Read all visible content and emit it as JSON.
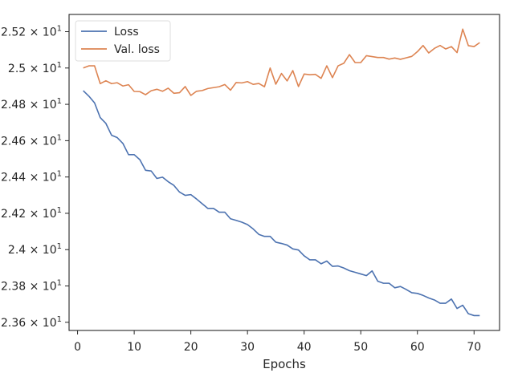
{
  "chart_data": {
    "type": "line",
    "title": "",
    "xlabel": "Epochs",
    "ylabel": "",
    "xlim": [
      -1.5,
      74.5
    ],
    "ylim": [
      23.555,
      25.295
    ],
    "grid": false,
    "legend_position": "top-left",
    "x_ticks": [
      0,
      10,
      20,
      30,
      40,
      50,
      60,
      70
    ],
    "x_tick_labels": [
      "0",
      "10",
      "20",
      "30",
      "40",
      "50",
      "60",
      "70"
    ],
    "y_ticks": [
      23.6,
      23.8,
      24.0,
      24.2,
      24.4,
      24.6,
      24.8,
      25.0,
      25.2
    ],
    "y_tick_labels": [
      {
        "mantissa": "2.36",
        "exp": "1"
      },
      {
        "mantissa": "2.38",
        "exp": "1"
      },
      {
        "mantissa": "2.4",
        "exp": "1"
      },
      {
        "mantissa": "2.42",
        "exp": "1"
      },
      {
        "mantissa": "2.44",
        "exp": "1"
      },
      {
        "mantissa": "2.46",
        "exp": "1"
      },
      {
        "mantissa": "2.48",
        "exp": "1"
      },
      {
        "mantissa": "2.5",
        "exp": "1"
      },
      {
        "mantissa": "2.52",
        "exp": "1"
      }
    ],
    "y_tick_times": "×",
    "y_tick_base": "10",
    "series": [
      {
        "name": "Loss",
        "color": "#4c72b0",
        "x": [
          1,
          2,
          3,
          4,
          5,
          6,
          7,
          8,
          9,
          10,
          11,
          12,
          13,
          14,
          15,
          16,
          17,
          18,
          19,
          20,
          21,
          22,
          23,
          24,
          25,
          26,
          27,
          28,
          29,
          30,
          31,
          32,
          33,
          34,
          35,
          36,
          37,
          38,
          39,
          40,
          41,
          42,
          43,
          44,
          45,
          46,
          47,
          48,
          49,
          50,
          51,
          52,
          53,
          54,
          55,
          56,
          57,
          58,
          59,
          60,
          61,
          62,
          63,
          64,
          65,
          66,
          67,
          68,
          69,
          70,
          71
        ],
        "values": [
          24.875,
          24.845,
          24.808,
          24.727,
          24.695,
          24.63,
          24.617,
          24.585,
          24.523,
          24.523,
          24.495,
          24.437,
          24.433,
          24.392,
          24.399,
          24.374,
          24.354,
          24.317,
          24.299,
          24.303,
          24.279,
          24.253,
          24.227,
          24.227,
          24.206,
          24.206,
          24.17,
          24.161,
          24.151,
          24.138,
          24.114,
          24.084,
          24.073,
          24.073,
          24.041,
          24.034,
          24.025,
          24.004,
          23.998,
          23.966,
          23.944,
          23.944,
          23.922,
          23.937,
          23.908,
          23.91,
          23.899,
          23.884,
          23.875,
          23.866,
          23.857,
          23.883,
          23.826,
          23.815,
          23.815,
          23.79,
          23.797,
          23.781,
          23.763,
          23.759,
          23.748,
          23.734,
          23.723,
          23.705,
          23.705,
          23.728,
          23.676,
          23.694,
          23.647,
          23.637,
          23.637
        ]
      },
      {
        "name": "Val. loss",
        "color": "#dd8452",
        "x": [
          1,
          2,
          3,
          4,
          5,
          6,
          7,
          8,
          9,
          10,
          11,
          12,
          13,
          14,
          15,
          16,
          17,
          18,
          19,
          20,
          21,
          22,
          23,
          24,
          25,
          26,
          27,
          28,
          29,
          30,
          31,
          32,
          33,
          34,
          35,
          36,
          37,
          38,
          39,
          40,
          41,
          42,
          43,
          44,
          45,
          46,
          47,
          48,
          49,
          50,
          51,
          52,
          53,
          54,
          55,
          56,
          57,
          58,
          59,
          60,
          61,
          62,
          63,
          64,
          65,
          66,
          67,
          68,
          69,
          70,
          71
        ],
        "values": [
          25.0,
          25.012,
          25.012,
          24.914,
          24.93,
          24.914,
          24.919,
          24.901,
          24.908,
          24.871,
          24.87,
          24.853,
          24.875,
          24.883,
          24.872,
          24.889,
          24.861,
          24.864,
          24.898,
          24.849,
          24.872,
          24.876,
          24.887,
          24.892,
          24.897,
          24.909,
          24.878,
          24.92,
          24.918,
          24.925,
          24.91,
          24.915,
          24.897,
          25.0,
          24.911,
          24.97,
          24.929,
          24.986,
          24.898,
          24.967,
          24.963,
          24.965,
          24.943,
          25.012,
          24.947,
          25.012,
          25.026,
          25.074,
          25.03,
          25.03,
          25.068,
          25.063,
          25.058,
          25.058,
          25.049,
          25.055,
          25.048,
          25.056,
          25.064,
          25.09,
          25.124,
          25.083,
          25.108,
          25.124,
          25.105,
          25.118,
          25.085,
          25.214,
          25.123,
          25.118,
          25.14
        ]
      }
    ]
  }
}
